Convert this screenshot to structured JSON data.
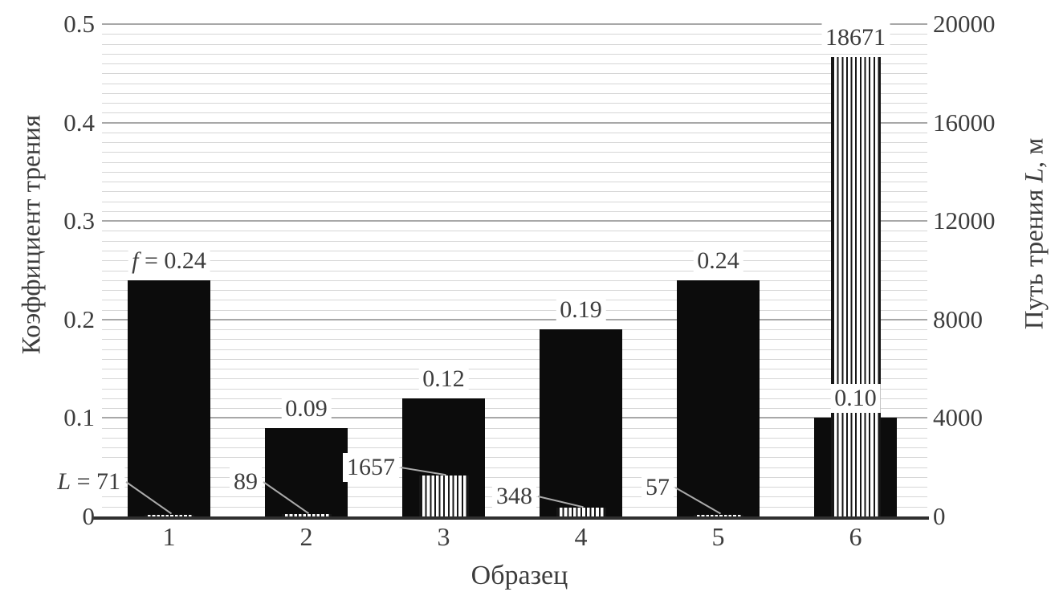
{
  "chart_data": {
    "type": "bar",
    "title": "",
    "x_axis": {
      "title": "Образец",
      "categories": [
        "1",
        "2",
        "3",
        "4",
        "5",
        "6"
      ]
    },
    "left_axis": {
      "title": "Коэффициент трения",
      "min": 0,
      "max": 0.5,
      "major_tick": 0.1,
      "minor_tick": 0.01,
      "tick_labels": [
        "0",
        "0.1",
        "0.2",
        "0.3",
        "0.4",
        "0.5"
      ]
    },
    "right_axis": {
      "title": "Путь трения L, м",
      "title_parts": [
        "Путь трения ",
        "L",
        ", м"
      ],
      "min": 0,
      "max": 20000,
      "major_tick": 4000,
      "minor_tick": 400,
      "tick_labels": [
        "0",
        "4000",
        "8000",
        "12000",
        "16000",
        "20000"
      ]
    },
    "series": [
      {
        "name": "Коэффициент трения f",
        "axis": "left",
        "style": "solid-black-bar",
        "values": [
          0.24,
          0.09,
          0.12,
          0.19,
          0.24,
          0.1
        ],
        "data_labels": [
          "f = 0.24",
          "0.09",
          "0.12",
          "0.19",
          "0.24",
          "0.10"
        ],
        "label_position": "above-bar"
      },
      {
        "name": "Путь трения L, м",
        "axis": "right",
        "style": "vertical-hatched-bar",
        "values": [
          71,
          89,
          1657,
          348,
          57,
          18671
        ],
        "data_labels": [
          "L = 71",
          "89",
          "1657",
          "348",
          "57",
          "18671"
        ],
        "label_position": "left-of-bar-with-leader-line; last label above bar"
      }
    ],
    "grid": {
      "horizontal_major": true,
      "horizontal_minor": true,
      "vertical": false
    },
    "legend": "none",
    "colors": {
      "solid_bar": "#0c0c0c",
      "hatch_line": "#161616",
      "hatch_bg": "#ffffff",
      "text": "#3d3d3d",
      "major_grid": "#a8a8a8",
      "minor_grid": "#d6d6d6",
      "axis_line": "#2f2f2f",
      "leader_line": "#ababab",
      "background": "#ffffff"
    }
  }
}
